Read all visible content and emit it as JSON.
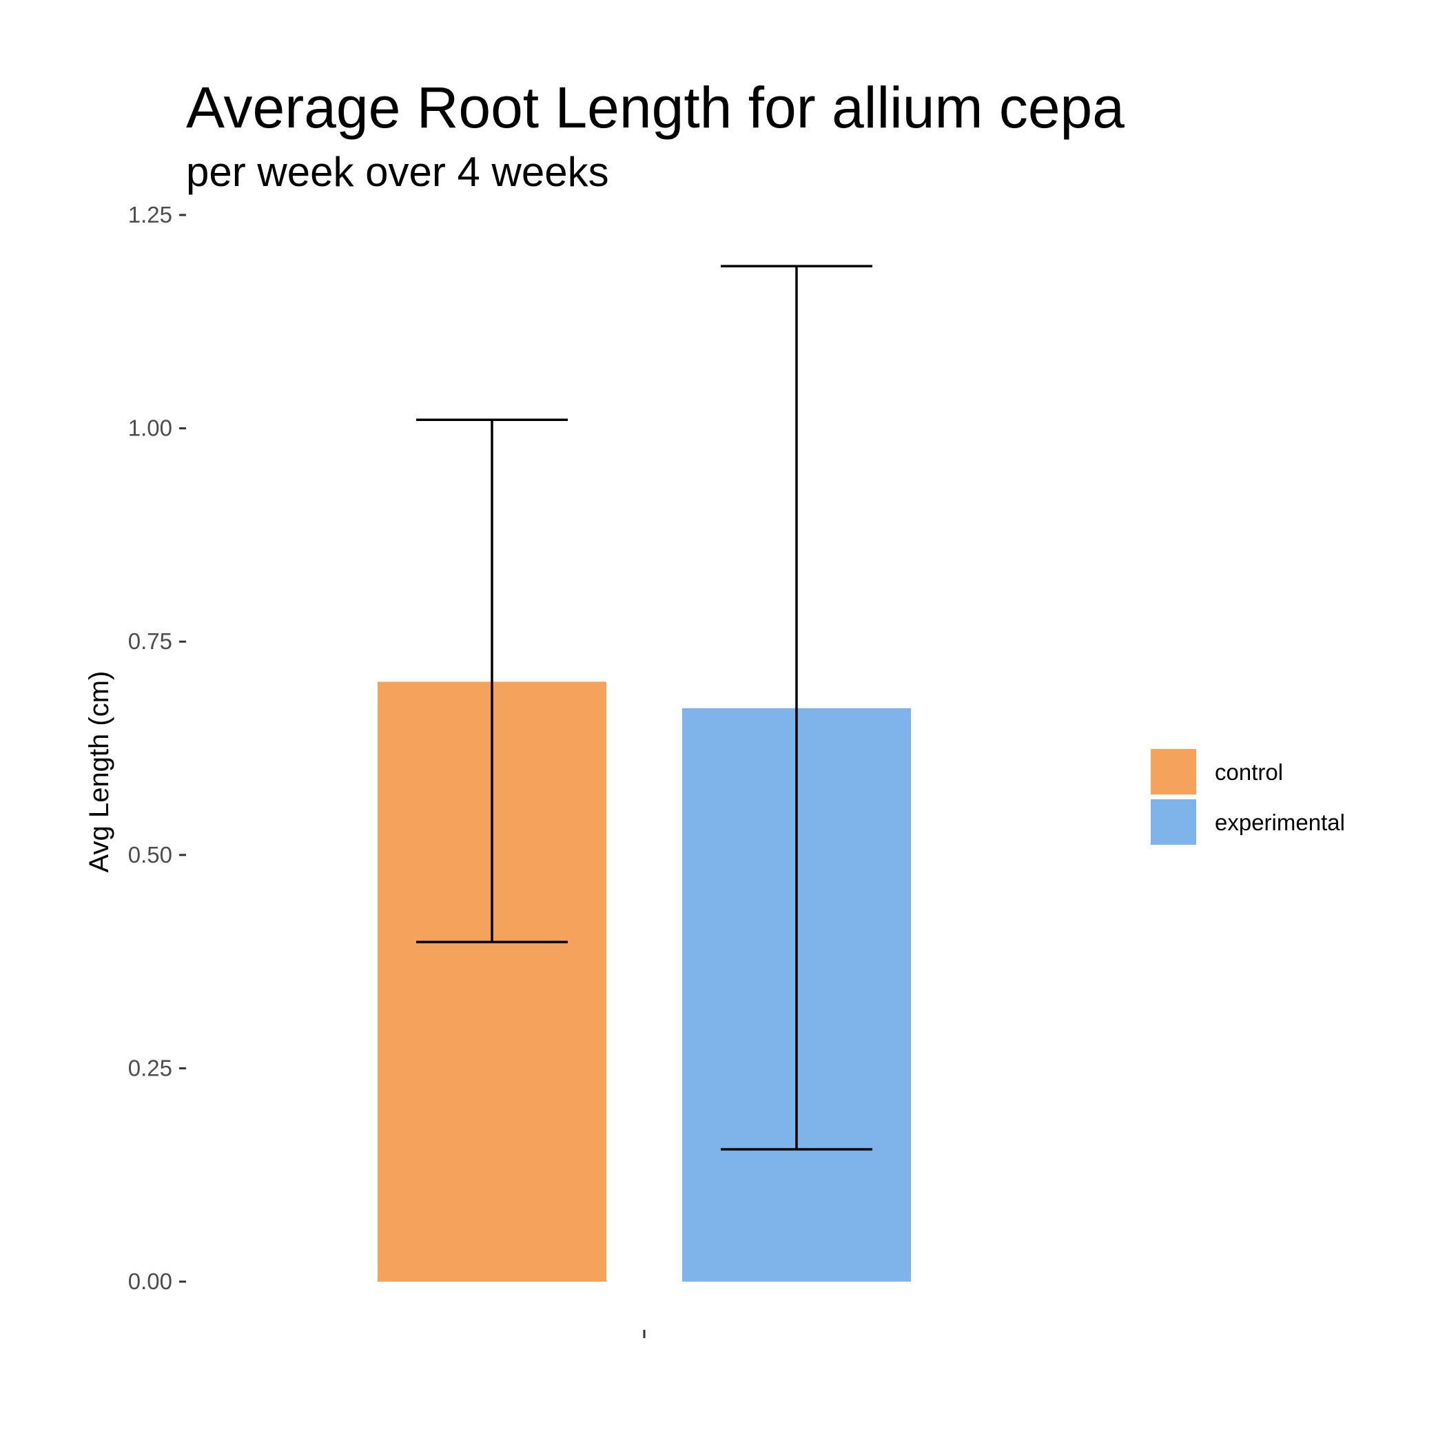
{
  "chart_data": {
    "type": "bar",
    "title": "Average Root Length for allium cepa",
    "subtitle": "per week over 4 weeks",
    "xlabel": "",
    "ylabel": "Avg Length (cm)",
    "ylim": [
      0,
      1.25
    ],
    "yticks": [
      {
        "value": 0.0,
        "label": "0.00"
      },
      {
        "value": 0.25,
        "label": "0.25"
      },
      {
        "value": 0.5,
        "label": "0.50"
      },
      {
        "value": 0.75,
        "label": "0.75"
      },
      {
        "value": 1.0,
        "label": "1.00"
      },
      {
        "value": 1.25,
        "label": "1.25"
      }
    ],
    "categories": [
      ""
    ],
    "series": [
      {
        "name": "control",
        "values": [
          0.703
        ],
        "error_low": [
          0.398
        ],
        "error_high": [
          1.01
        ],
        "color": "#F5A35C"
      },
      {
        "name": "experimental",
        "values": [
          0.672
        ],
        "error_low": [
          0.155
        ],
        "error_high": [
          1.19
        ],
        "color": "#7EB4EA"
      }
    ],
    "grid": false,
    "legend": {
      "position": "right",
      "items": [
        "control",
        "experimental"
      ]
    }
  }
}
